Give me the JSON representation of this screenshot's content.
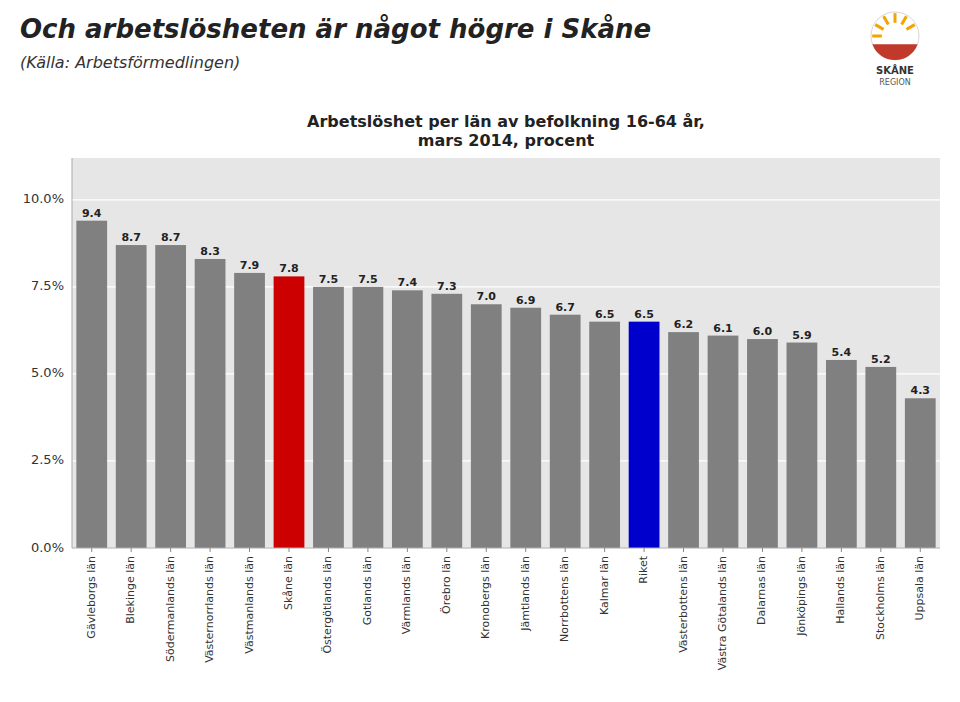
{
  "chart_data": {
    "type": "bar",
    "title": "Och arbetslösheten är något högre i Skåne",
    "subtitle": "(Källa: Arbetsförmedlingen)",
    "chart_title": "Arbetslöshet per län av befolkning 16-64 år,\nmars 2014, procent",
    "annotations": [
      "SKÅNE",
      "REGION"
    ],
    "categories": [
      "Gävleborgs län",
      "Blekinge län",
      "Södermanlands län",
      "Västernorrlands län",
      "Västmanlands län",
      "Skåne län",
      "Östergötlands län",
      "Gotlands län",
      "Värmlands län",
      "Örebro län",
      "Kronobergs län",
      "Jämtlands län",
      "Norrbottens län",
      "Kalmar län",
      "Riket",
      "Västerbottens län",
      "Västra Götalands län",
      "Dalarnas län",
      "Jönköpings län",
      "Hallands län",
      "Stockholms län",
      "Uppsala län"
    ],
    "values": [
      9.4,
      8.7,
      8.7,
      8.3,
      7.9,
      7.8,
      7.5,
      7.5,
      7.4,
      7.3,
      7.0,
      6.9,
      6.7,
      6.5,
      6.5,
      6.2,
      6.1,
      6.0,
      5.9,
      5.4,
      5.2,
      4.3
    ],
    "value_labels": [
      "9.4",
      "8.7",
      "8.7",
      "8.3",
      "7.9",
      "7.8",
      "7.5",
      "7.5",
      "7.4",
      "7.3",
      "7.0",
      "6.9",
      "6.7",
      "6.5",
      "6.5",
      "6.2",
      "6.1",
      "6.0",
      "5.9",
      "5.4",
      "5.2",
      "4.3"
    ],
    "colors": [
      "#808080",
      "#808080",
      "#808080",
      "#808080",
      "#808080",
      "#cc0000",
      "#808080",
      "#808080",
      "#808080",
      "#808080",
      "#808080",
      "#808080",
      "#808080",
      "#808080",
      "#0000cc",
      "#808080",
      "#808080",
      "#808080",
      "#808080",
      "#808080",
      "#808080",
      "#808080"
    ],
    "ylim": [
      0,
      11.2
    ],
    "yticks": [
      {
        "value": 0.0,
        "label": "0.0%"
      },
      {
        "value": 2.5,
        "label": "2.5%"
      },
      {
        "value": 5.0,
        "label": "5.0%"
      },
      {
        "value": 7.5,
        "label": "7.5%"
      },
      {
        "value": 10.0,
        "label": "10.0%"
      }
    ],
    "grid": true,
    "data_labels": true
  }
}
